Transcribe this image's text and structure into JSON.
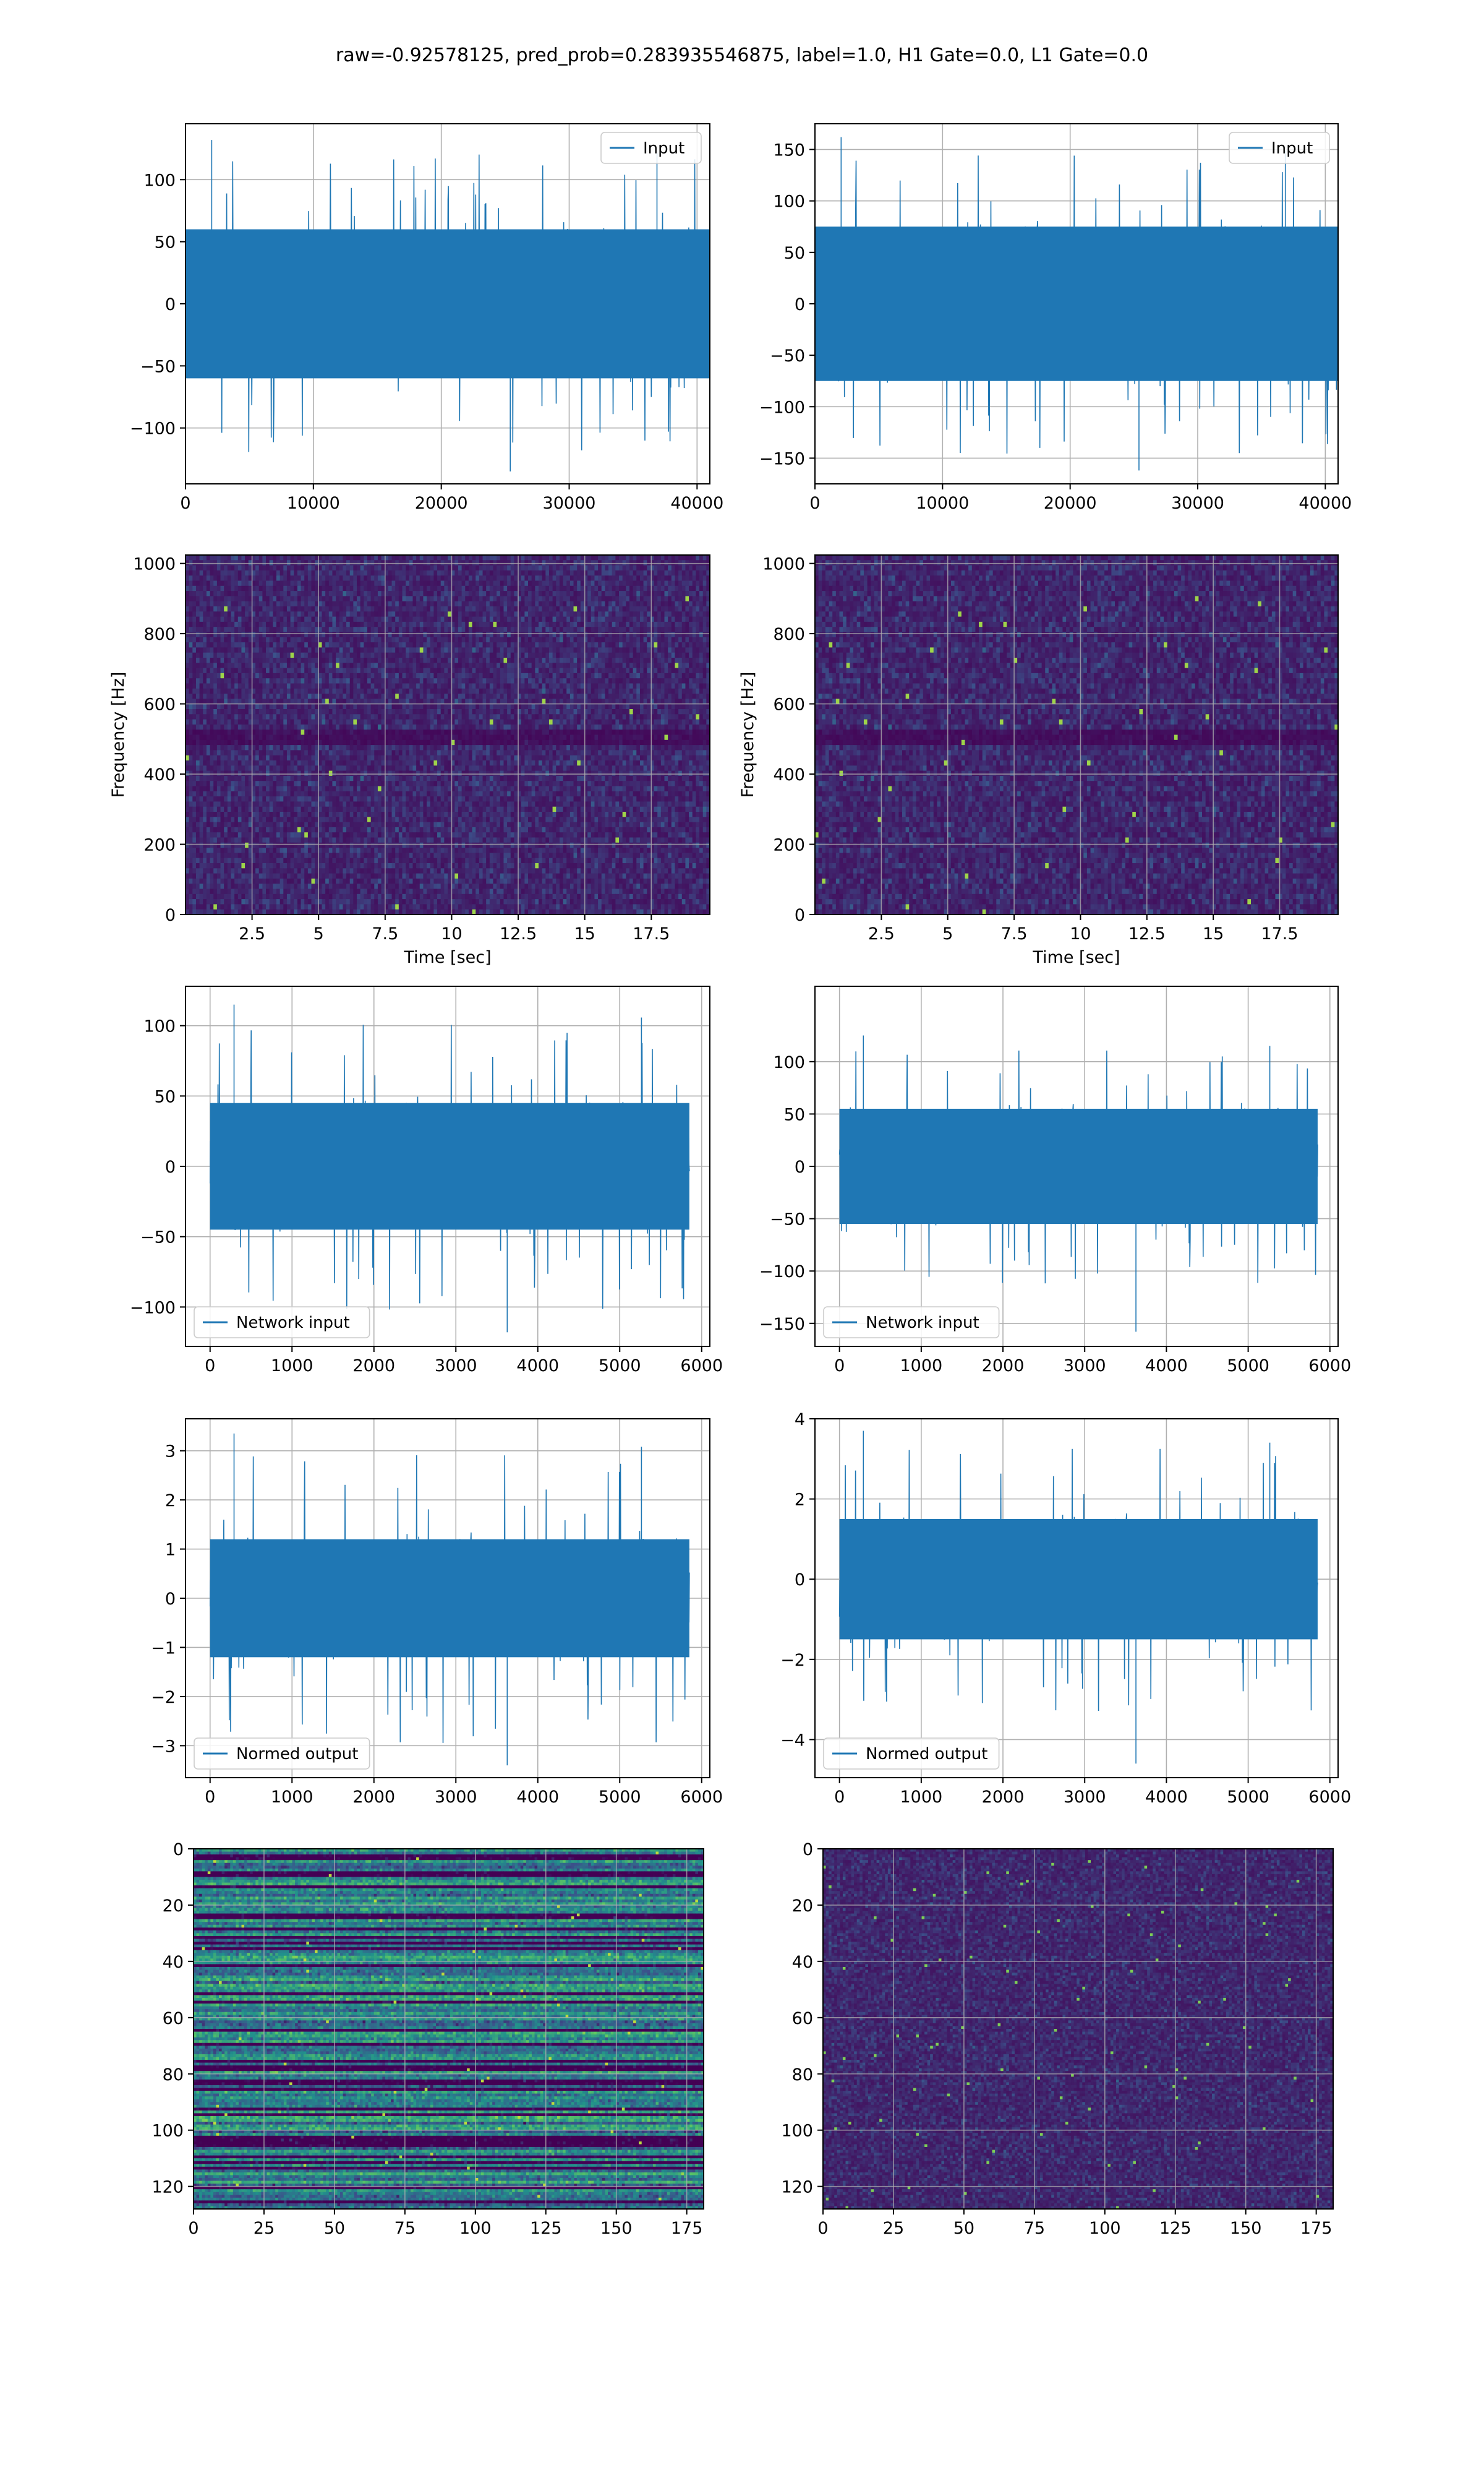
{
  "suptitle": "raw=-0.92578125, pred_prob=0.283935546875, label=1.0, H1 Gate=0.0, L1 Gate=0.0",
  "chart_data": [
    {
      "type": "line",
      "position": "row 1, left",
      "legend": "Input",
      "legend_loc": "upper right",
      "xlim": [
        0,
        41000
      ],
      "xticks": [
        0,
        10000,
        20000,
        30000,
        40000
      ],
      "ylim": [
        -145,
        145
      ],
      "yticks": [
        -100,
        -50,
        0,
        50,
        100
      ],
      "series": [
        {
          "name": "Input",
          "x_range": [
            0,
            40960
          ],
          "band": [
            -60,
            60
          ],
          "peak_max": 132,
          "peak_min": -135
        }
      ],
      "grid": true
    },
    {
      "type": "line",
      "position": "row 1, right",
      "legend": "Input",
      "legend_loc": "upper right",
      "xlim": [
        0,
        41000
      ],
      "xticks": [
        0,
        10000,
        20000,
        30000,
        40000
      ],
      "ylim": [
        -175,
        175
      ],
      "yticks": [
        -150,
        -100,
        -50,
        0,
        50,
        100,
        150
      ],
      "series": [
        {
          "name": "Input",
          "x_range": [
            0,
            40960
          ],
          "band": [
            -75,
            75
          ],
          "peak_max": 162,
          "peak_min": -162
        }
      ],
      "grid": true
    },
    {
      "type": "heatmap",
      "position": "row 2, left",
      "xlabel": "Time [sec]",
      "ylabel": "Frequency [Hz]",
      "xlim": [
        0,
        19.7
      ],
      "xticks": [
        2.5,
        5.0,
        7.5,
        10.0,
        12.5,
        15.0,
        17.5
      ],
      "ylim": [
        0,
        1024
      ],
      "yticks": [
        0,
        200,
        400,
        600,
        800,
        1000
      ],
      "colormap": "viridis",
      "grid": true
    },
    {
      "type": "heatmap",
      "position": "row 2, right",
      "xlabel": "Time [sec]",
      "ylabel": "Frequency [Hz]",
      "xlim": [
        0,
        19.7
      ],
      "xticks": [
        2.5,
        5.0,
        7.5,
        10.0,
        12.5,
        15.0,
        17.5
      ],
      "ylim": [
        0,
        1024
      ],
      "yticks": [
        0,
        200,
        400,
        600,
        800,
        1000
      ],
      "colormap": "viridis",
      "grid": true
    },
    {
      "type": "line",
      "position": "row 3, left",
      "legend": "Network input",
      "legend_loc": "lower left",
      "xlim": [
        -300,
        6100
      ],
      "xticks": [
        0,
        1000,
        2000,
        3000,
        4000,
        5000,
        6000
      ],
      "ylim": [
        -128,
        128
      ],
      "yticks": [
        -100,
        -50,
        0,
        50,
        100
      ],
      "series": [
        {
          "name": "Network input",
          "x_range": [
            0,
            5850
          ],
          "band": [
            -45,
            45
          ],
          "peak_max": 115,
          "peak_min": -118
        }
      ],
      "grid": true
    },
    {
      "type": "line",
      "position": "row 3, right",
      "legend": "Network input",
      "legend_loc": "lower left",
      "xlim": [
        -300,
        6100
      ],
      "xticks": [
        0,
        1000,
        2000,
        3000,
        4000,
        5000,
        6000
      ],
      "ylim": [
        -172,
        172
      ],
      "yticks": [
        -150,
        -100,
        -50,
        0,
        50,
        100
      ],
      "series": [
        {
          "name": "Network input",
          "x_range": [
            0,
            5850
          ],
          "band": [
            -55,
            55
          ],
          "peak_max": 125,
          "peak_min": -158
        }
      ],
      "grid": true
    },
    {
      "type": "line",
      "position": "row 4, left",
      "legend": "Normed output",
      "legend_loc": "lower left",
      "xlim": [
        -300,
        6100
      ],
      "xticks": [
        0,
        1000,
        2000,
        3000,
        4000,
        5000,
        6000
      ],
      "ylim": [
        -3.65,
        3.65
      ],
      "yticks": [
        -3,
        -2,
        -1,
        0,
        1,
        2,
        3
      ],
      "series": [
        {
          "name": "Normed output",
          "x_range": [
            0,
            5850
          ],
          "band": [
            -1.2,
            1.2
          ],
          "peak_max": 3.35,
          "peak_min": -3.4
        }
      ],
      "grid": true
    },
    {
      "type": "line",
      "position": "row 4, right",
      "legend": "Normed output",
      "legend_loc": "lower left",
      "xlim": [
        -300,
        6100
      ],
      "xticks": [
        0,
        1000,
        2000,
        3000,
        4000,
        5000,
        6000
      ],
      "ylim": [
        -4.95,
        4.0
      ],
      "yticks": [
        -4,
        -2,
        0,
        2,
        4
      ],
      "series": [
        {
          "name": "Normed output",
          "x_range": [
            0,
            5850
          ],
          "band": [
            -1.5,
            1.5
          ],
          "peak_max": 3.7,
          "peak_min": -4.6
        }
      ],
      "grid": true
    },
    {
      "type": "heatmap",
      "position": "row 5, left",
      "xlim": [
        0,
        181
      ],
      "xticks": [
        0,
        25,
        50,
        75,
        100,
        125,
        150,
        175
      ],
      "ylim": [
        128,
        0
      ],
      "yticks": [
        0,
        20,
        40,
        60,
        80,
        100,
        120
      ],
      "colormap": "viridis",
      "grid": true
    },
    {
      "type": "heatmap",
      "position": "row 5, right",
      "xlim": [
        0,
        181
      ],
      "xticks": [
        0,
        25,
        50,
        75,
        100,
        125,
        150,
        175
      ],
      "ylim": [
        128,
        0
      ],
      "yticks": [
        0,
        20,
        40,
        60,
        80,
        100,
        120
      ],
      "colormap": "viridis",
      "grid": true
    }
  ],
  "colors": {
    "line": "#1f77b4",
    "grid": "#b0b0b0",
    "viridis": [
      "#440154",
      "#3b528b",
      "#21918c",
      "#5ec962",
      "#fde725"
    ]
  }
}
